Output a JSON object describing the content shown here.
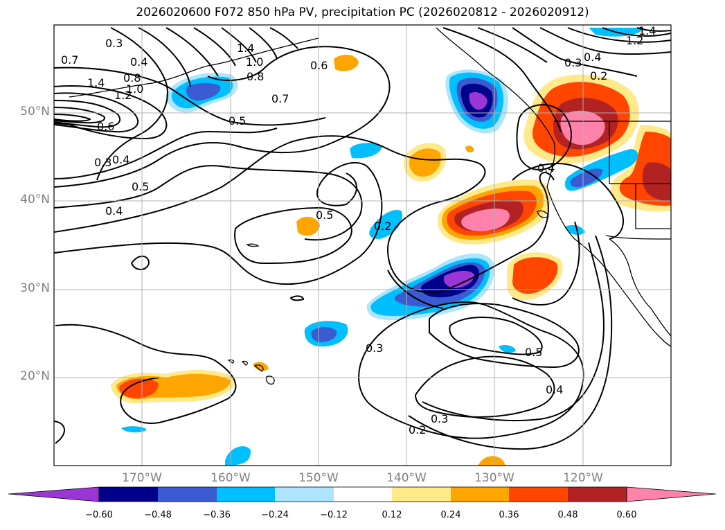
{
  "title": "2026020600 F072 850 hPa PV, precipitation PC (2026020812 - 2026020912)",
  "map": {
    "lon_range": [
      -180,
      -110
    ],
    "lat_range": [
      10,
      60
    ],
    "lat_labels": [
      "50°N",
      "40°N",
      "30°N",
      "20°N"
    ],
    "lon_labels": [
      "170°W",
      "160°W",
      "150°W",
      "140°W",
      "130°W",
      "120°W"
    ],
    "contour_labels": [
      "0.3",
      "0.4",
      "0.7",
      "1.4",
      "1.2",
      "0.8",
      "1.0",
      "0.6",
      "0.3",
      "0.4",
      "0.5",
      "0.4",
      "1.4",
      "1.0",
      "0.8",
      "0.7",
      "0.5",
      "0.6",
      "0.5",
      "0.2",
      "0.3",
      "0.5",
      "0.4",
      "0.3",
      "0.2",
      "0.4",
      "0.3",
      "0.4",
      "0.2",
      "1.2",
      "1.4"
    ]
  },
  "colorbar": {
    "ticks": [
      "−0.60",
      "−0.48",
      "−0.36",
      "−0.24",
      "−0.12",
      "0.12",
      "0.24",
      "0.36",
      "0.48",
      "0.60"
    ],
    "colors": [
      "#9a36d6",
      "#00008b",
      "#3a5bd1",
      "#00bfff",
      "#ade5ff",
      "#ffffff",
      "#ffe989",
      "#ffa500",
      "#ff4500",
      "#b22222",
      "#ff82ab"
    ]
  }
}
